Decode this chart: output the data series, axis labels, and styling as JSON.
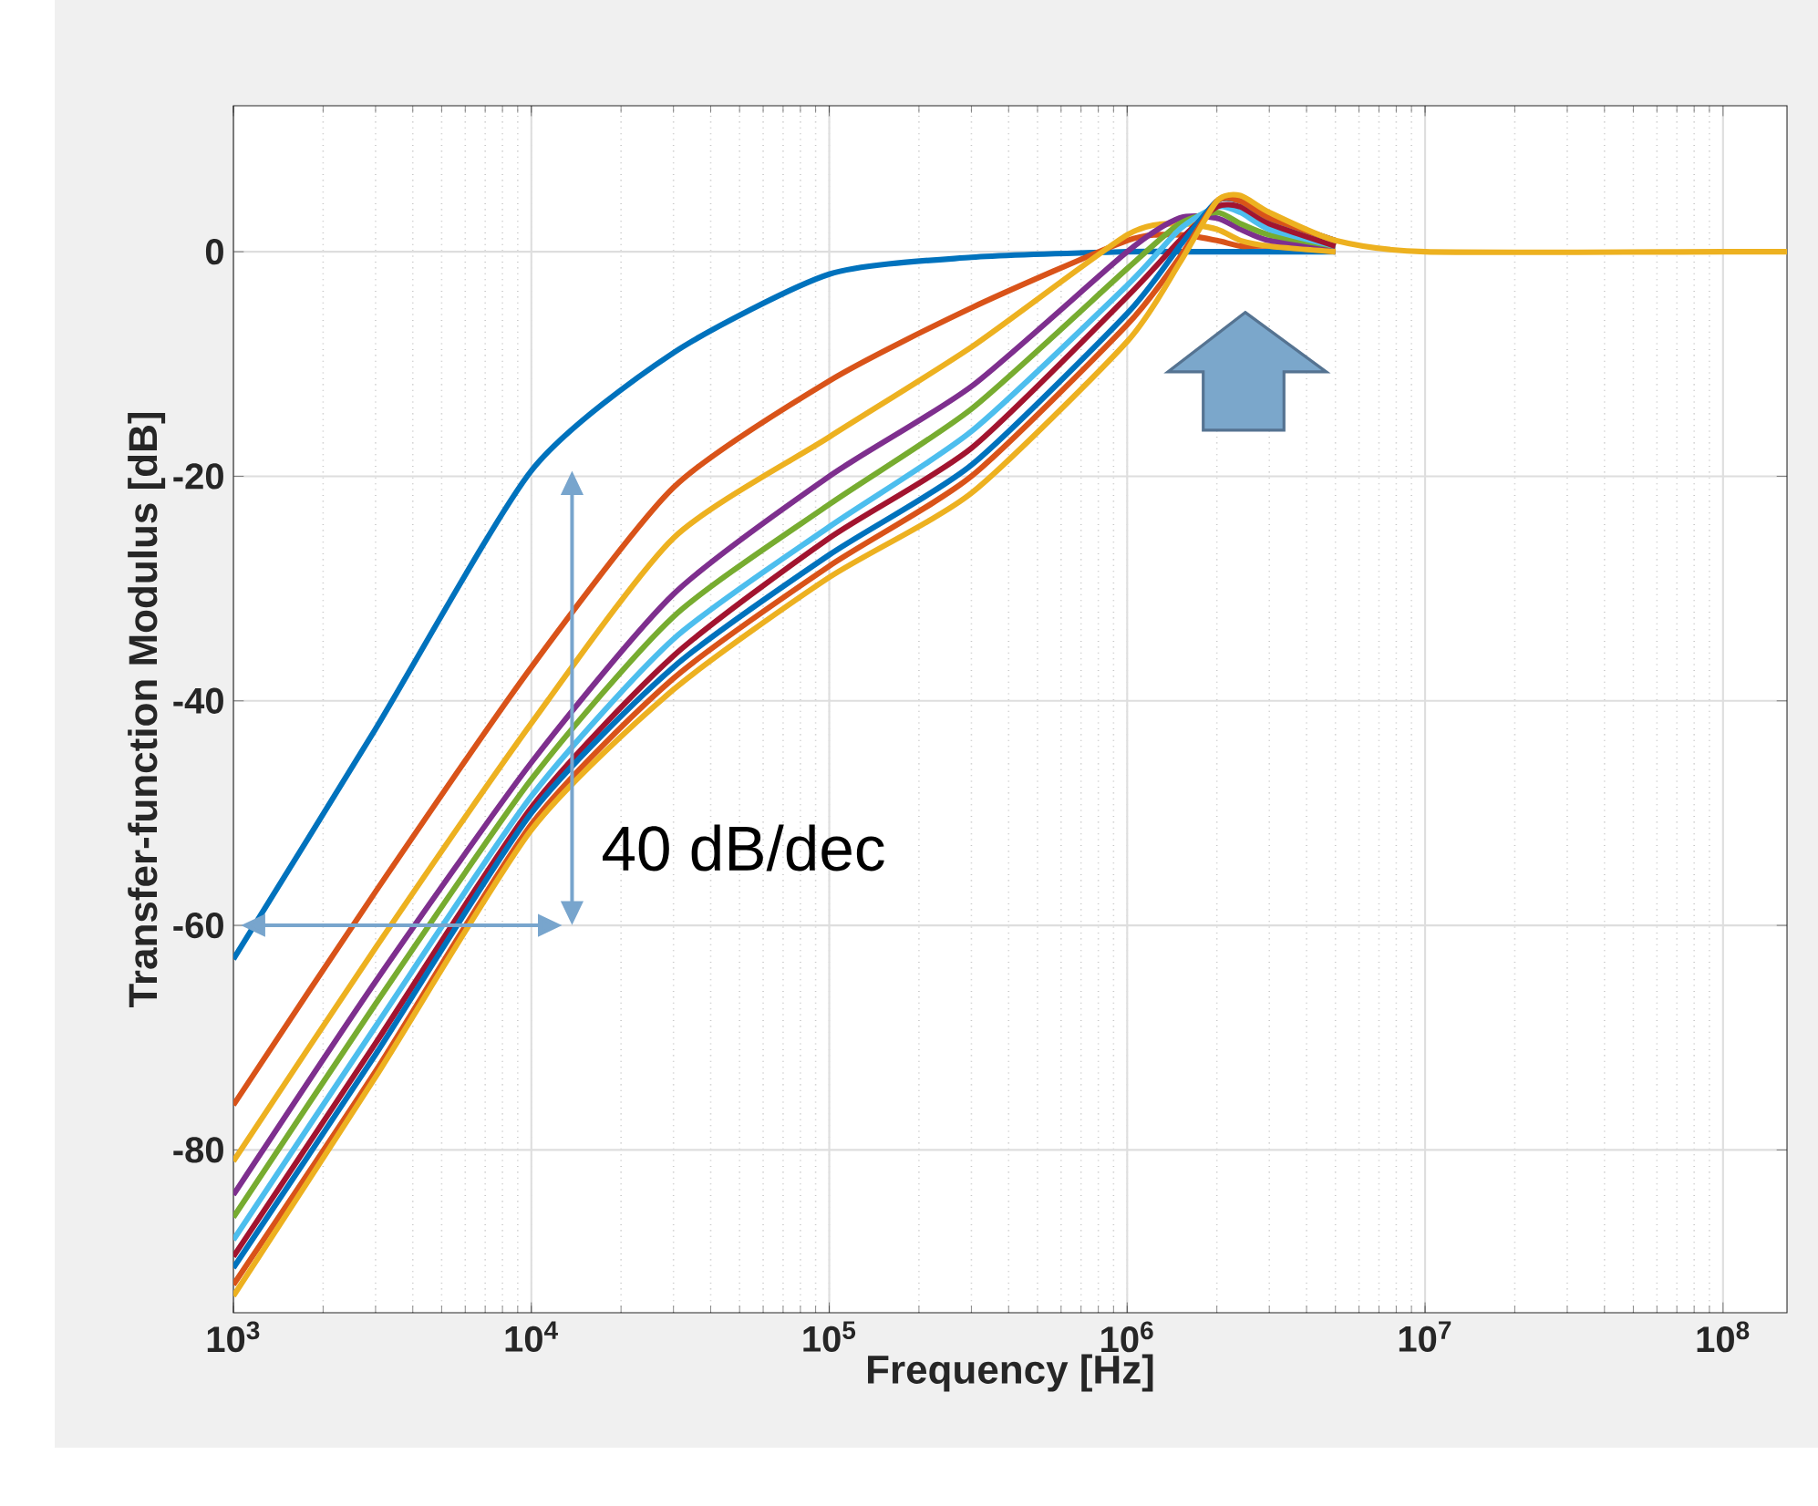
{
  "chart_data": {
    "type": "line",
    "xlabel": "Frequency [Hz]",
    "ylabel": "Transfer-function Modulus [dB]",
    "x": [
      1000,
      3000,
      10000,
      30000,
      100000,
      300000,
      1000000,
      1500000,
      2000000,
      2400000,
      3000000,
      5000000,
      10000000,
      100000000,
      164000000
    ],
    "series": [
      {
        "color": "#0072bd",
        "values": [
          -63,
          -42.5,
          -19.5,
          -9,
          -2,
          -0.5,
          0,
          0,
          0,
          0,
          0,
          0,
          null,
          null,
          null
        ]
      },
      {
        "color": "#d95319",
        "values": [
          -76,
          -57,
          -37,
          -21,
          -11.5,
          -5,
          1,
          1.5,
          1,
          0.5,
          0.5,
          0,
          null,
          null,
          null
        ]
      },
      {
        "color": "#edb120",
        "values": [
          -81,
          -62,
          -42,
          -25.5,
          -16.5,
          -8.5,
          1.5,
          2.5,
          2,
          1,
          0.5,
          0,
          null,
          null,
          null
        ]
      },
      {
        "color": "#7e2f8e",
        "values": [
          -84,
          -65,
          -45.5,
          -30.5,
          -20,
          -12,
          0,
          3,
          3,
          2,
          1,
          0.5,
          null,
          null,
          null
        ]
      },
      {
        "color": "#77ac30",
        "values": [
          -86,
          -67,
          -47,
          -32.5,
          -22.5,
          -14,
          -1.5,
          2.5,
          3.5,
          2.5,
          1.5,
          0.5,
          null,
          null,
          null
        ]
      },
      {
        "color": "#4dbeee",
        "values": [
          -88,
          -69,
          -48.5,
          -34.5,
          -24.5,
          -16,
          -3,
          2,
          4,
          3.5,
          2,
          0.5,
          null,
          null,
          null
        ]
      },
      {
        "color": "#a2142f",
        "values": [
          -89.5,
          -70.5,
          -49.5,
          -36,
          -25.5,
          -17.5,
          -4,
          1,
          4,
          4,
          2.5,
          0.5,
          null,
          null,
          null
        ]
      },
      {
        "color": "#0072bd",
        "values": [
          -90.5,
          -71.5,
          -50,
          -37,
          -27,
          -19,
          -5.5,
          0.5,
          4.5,
          4.5,
          3,
          1,
          null,
          null,
          null
        ]
      },
      {
        "color": "#d95319",
        "values": [
          -92,
          -73,
          -51,
          -38,
          -28,
          -20,
          -6.5,
          -0.5,
          4.5,
          4.5,
          3,
          1,
          null,
          null,
          null
        ]
      },
      {
        "color": "#edb120",
        "values": [
          -93,
          -73.5,
          -51.5,
          -39,
          -29,
          -21.5,
          -8,
          -1,
          4.5,
          5,
          3.5,
          1,
          0,
          0,
          0
        ]
      }
    ],
    "xlim": [
      1000,
      164000000
    ],
    "ylim": [
      -94.5,
      13
    ],
    "xticks": [
      {
        "value": 1000,
        "label": "10$^{3}$"
      },
      {
        "value": 10000,
        "label": "10$^{4}$"
      },
      {
        "value": 100000,
        "label": "10$^{5}$"
      },
      {
        "value": 1000000,
        "label": "10$^{6}$"
      },
      {
        "value": 10000000,
        "label": "10$^{7}$"
      },
      {
        "value": 100000000,
        "label": "10$^{8}$"
      }
    ],
    "yticks": [
      -80,
      -60,
      -40,
      -20,
      0
    ],
    "log": "x",
    "grid": true,
    "annotations": [
      "40 dB/dec"
    ]
  }
}
